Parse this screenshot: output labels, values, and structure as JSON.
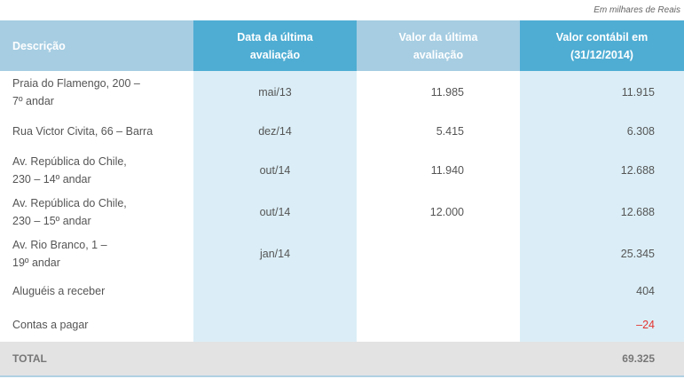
{
  "note": "Em milhares de Reais",
  "headers": {
    "c0": "Descrição",
    "c1_line1": "Data da última",
    "c1_line2": "avaliação",
    "c2_line1": "Valor da última",
    "c2_line2": "avaliação",
    "c3_line1": "Valor contábil em",
    "c3_line2": "(31/12/2014)"
  },
  "rows": [
    {
      "desc_line1": "Praia do Flamengo, 200 –",
      "desc_line2": "7º andar",
      "date": "mai/13",
      "valor": "11.985",
      "contabil": "11.915"
    },
    {
      "desc_line1": "Rua Victor Civita, 66 – Barra",
      "desc_line2": "",
      "date": "dez/14",
      "valor": "5.415",
      "contabil": "6.308"
    },
    {
      "desc_line1": "Av. República do Chile,",
      "desc_line2": "230 – 14º andar",
      "date": "out/14",
      "valor": "11.940",
      "contabil": "12.688"
    },
    {
      "desc_line1": "Av. República do Chile,",
      "desc_line2": "230 – 15º andar",
      "date": "out/14",
      "valor": "12.000",
      "contabil": "12.688"
    },
    {
      "desc_line1": "Av. Rio Branco, 1 –",
      "desc_line2": "19º andar",
      "date": "jan/14",
      "valor": "",
      "contabil": "25.345"
    },
    {
      "desc_line1": "Aluguéis a receber",
      "desc_line2": "",
      "date": "",
      "valor": "",
      "contabil": "404"
    },
    {
      "desc_line1": "Contas a pagar",
      "desc_line2": "",
      "date": "",
      "valor": "",
      "contabil": "–24"
    }
  ],
  "total": {
    "label": "TOTAL",
    "value": "69.325"
  },
  "colors": {
    "header_dark": "#4fadd3",
    "header_light": "#a6cde2",
    "band": "#dbeef7",
    "negative": "#e4332f",
    "total_bg": "#e3e3e4"
  }
}
